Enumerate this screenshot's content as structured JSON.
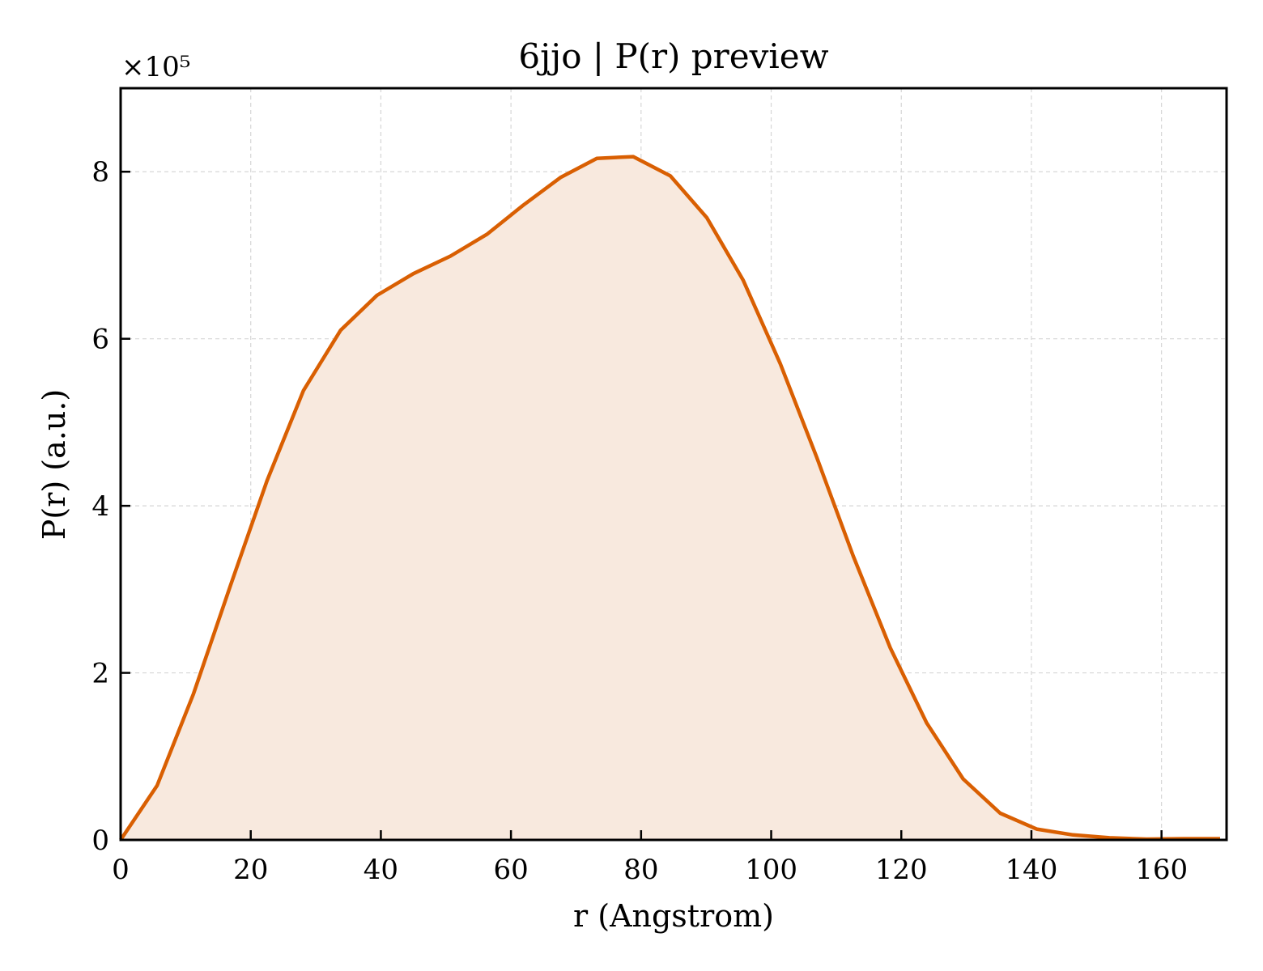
{
  "chart_data": {
    "type": "area",
    "title": "6jjo | P(r) preview",
    "xlabel": "r (Angstrom)",
    "ylabel": "P(r) (a.u.)",
    "y_multiplier_label": "×10⁵",
    "xlim": [
      0,
      170
    ],
    "ylim": [
      0,
      9
    ],
    "xticks": [
      0,
      20,
      40,
      60,
      80,
      100,
      120,
      140,
      160
    ],
    "yticks": [
      0,
      2,
      4,
      6,
      8
    ],
    "grid": true,
    "series": [
      {
        "color": "#d95f02",
        "fill_color": "#f8e9de",
        "x": [
          0,
          5.6,
          11.2,
          16.9,
          22.5,
          28.1,
          33.8,
          39.4,
          45.0,
          50.7,
          56.3,
          61.9,
          67.6,
          73.2,
          78.8,
          84.5,
          90.1,
          95.7,
          101.4,
          107.0,
          112.6,
          118.3,
          123.9,
          129.5,
          135.2,
          140.8,
          146.4,
          152.0,
          157.7,
          163.3,
          169.0
        ],
        "y": [
          0,
          0.65,
          1.75,
          3.05,
          4.3,
          5.38,
          6.1,
          6.52,
          6.78,
          6.99,
          7.25,
          7.6,
          7.93,
          8.16,
          8.18,
          7.95,
          7.45,
          6.7,
          5.7,
          4.58,
          3.4,
          2.3,
          1.4,
          0.73,
          0.32,
          0.13,
          0.06,
          0.025,
          0.01,
          0.015,
          0.015
        ]
      }
    ]
  }
}
